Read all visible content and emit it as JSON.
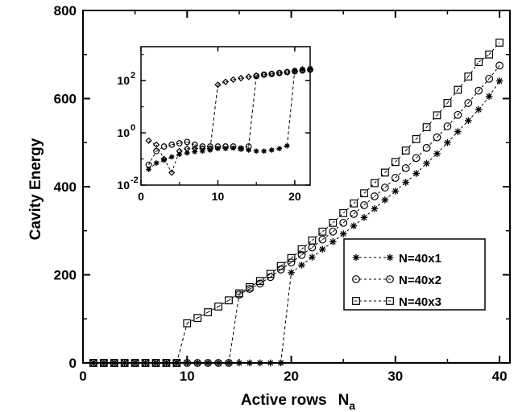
{
  "chart_data": [
    {
      "type": "line",
      "xlabel": "Active rows",
      "xlabel_symbol": "N",
      "xlabel_subscript": "a",
      "ylabel": "Cavity Energy",
      "xlim": [
        0,
        41
      ],
      "ylim": [
        0,
        800
      ],
      "xticks": [
        "0",
        "10",
        "20",
        "30",
        "40"
      ],
      "yticks": [
        "0",
        "200",
        "400",
        "600",
        "800"
      ],
      "grid": false,
      "legend": "lower-right",
      "series": [
        {
          "name": "N=40x1",
          "marker": "star",
          "x": [
            1,
            2,
            3,
            4,
            5,
            6,
            7,
            8,
            9,
            10,
            11,
            12,
            13,
            14,
            15,
            16,
            17,
            18,
            19,
            20,
            21,
            22,
            23,
            24,
            25,
            26,
            27,
            28,
            29,
            30,
            31,
            32,
            33,
            34,
            35,
            36,
            37,
            38,
            39,
            40
          ],
          "y": [
            0,
            0,
            0,
            0,
            0,
            0,
            0,
            0,
            0,
            0,
            0,
            0,
            0,
            0,
            0,
            0,
            0,
            0,
            0,
            205,
            222,
            240,
            258,
            275,
            293,
            311,
            330,
            350,
            370,
            390,
            410,
            430,
            453,
            475,
            500,
            525,
            550,
            575,
            605,
            640
          ]
        },
        {
          "name": "N=40x2",
          "marker": "circle",
          "x": [
            1,
            2,
            3,
            4,
            5,
            6,
            7,
            8,
            9,
            10,
            11,
            12,
            13,
            14,
            15,
            16,
            17,
            18,
            19,
            20,
            21,
            22,
            23,
            24,
            25,
            26,
            27,
            28,
            29,
            30,
            31,
            32,
            33,
            34,
            35,
            36,
            37,
            38,
            39,
            40
          ],
          "y": [
            0,
            0,
            0,
            0,
            0,
            0,
            0,
            0,
            0,
            0,
            0,
            0,
            0,
            0,
            155,
            168,
            180,
            195,
            212,
            228,
            245,
            262,
            280,
            298,
            318,
            338,
            358,
            378,
            398,
            420,
            442,
            465,
            488,
            512,
            537,
            563,
            590,
            618,
            645,
            675
          ]
        },
        {
          "name": "N=40x3",
          "marker": "square",
          "x": [
            1,
            2,
            3,
            4,
            5,
            6,
            7,
            8,
            9,
            10,
            11,
            12,
            13,
            14,
            15,
            16,
            17,
            18,
            19,
            20,
            21,
            22,
            23,
            24,
            25,
            26,
            27,
            28,
            29,
            30,
            31,
            32,
            33,
            34,
            35,
            36,
            37,
            38,
            39,
            40
          ],
          "y": [
            0,
            0,
            0,
            0,
            0,
            0,
            0,
            0,
            0,
            90,
            102,
            115,
            128,
            142,
            158,
            172,
            186,
            202,
            220,
            238,
            258,
            278,
            298,
            318,
            340,
            362,
            385,
            408,
            432,
            456,
            482,
            508,
            535,
            562,
            590,
            620,
            650,
            683,
            700,
            727
          ]
        }
      ]
    },
    {
      "type": "line",
      "title": "",
      "xlim": [
        0,
        22
      ],
      "ylog": true,
      "ylim": [
        0.01,
        2000
      ],
      "xticks": [
        "0",
        "10",
        "20"
      ],
      "yticks": [
        {
          "value": 0.01,
          "base": "10",
          "exp": "-2"
        },
        {
          "value": 1,
          "base": "10",
          "exp": "0"
        },
        {
          "value": 100,
          "base": "10",
          "exp": "2"
        }
      ],
      "series": [
        {
          "name": "N=40x1",
          "marker": "star",
          "x": [
            1,
            2,
            3,
            4,
            5,
            6,
            7,
            8,
            9,
            10,
            11,
            12,
            13,
            14,
            15,
            16,
            17,
            18,
            19,
            20,
            21,
            22
          ],
          "y": [
            0.04,
            0.07,
            0.09,
            0.12,
            0.15,
            0.17,
            0.19,
            0.2,
            0.22,
            0.25,
            0.25,
            0.26,
            0.25,
            0.22,
            0.2,
            0.2,
            0.22,
            0.25,
            0.32,
            250,
            280,
            300
          ]
        },
        {
          "name": "N=40x2",
          "marker": "circle",
          "x": [
            1,
            2,
            3,
            4,
            5,
            6,
            7,
            8,
            9,
            10,
            11,
            12,
            13,
            14,
            15,
            16,
            17,
            18,
            19,
            20,
            21,
            22
          ],
          "y": [
            0.06,
            0.2,
            0.3,
            0.35,
            0.4,
            0.45,
            0.35,
            0.3,
            0.3,
            0.3,
            0.3,
            0.3,
            0.25,
            0.3,
            150,
            170,
            180,
            195,
            212,
            228,
            245,
            260
          ]
        },
        {
          "name": "N=40x3",
          "marker": "diamond",
          "x": [
            1,
            2,
            3,
            4,
            5,
            6,
            7,
            8,
            9,
            10,
            11,
            12,
            13,
            14,
            15,
            16,
            17,
            18,
            19,
            20,
            21,
            22
          ],
          "y": [
            0.5,
            0.35,
            0.1,
            0.03,
            0.2,
            0.25,
            0.25,
            0.25,
            0.25,
            70,
            90,
            110,
            125,
            140,
            155,
            170,
            185,
            200,
            215,
            230,
            250,
            270
          ]
        }
      ]
    }
  ]
}
